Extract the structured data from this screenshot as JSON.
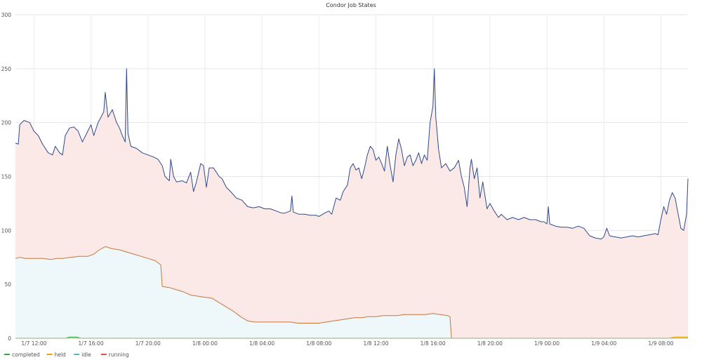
{
  "chart_data": {
    "type": "area",
    "title": "Condor Job States",
    "xlabel": "",
    "ylabel": "",
    "ylim": [
      0,
      300
    ],
    "grid": true,
    "legend_position": "bottom-left",
    "y_ticks": [
      "0",
      "50",
      "100",
      "150",
      "200",
      "250",
      "300"
    ],
    "x_tick_labels": [
      "1/7 12:00",
      "1/7 16:00",
      "1/7 20:00",
      "1/8 00:00",
      "1/8 04:00",
      "1/8 08:00",
      "1/8 12:00",
      "1/8 16:00",
      "1/8 20:00",
      "1/9 00:00",
      "1/9 04:00",
      "1/9 08:00"
    ],
    "x_hours": [
      12,
      16,
      20,
      24,
      28,
      32,
      36,
      40,
      44,
      48,
      52,
      56
    ],
    "x_range_hours": [
      10.7,
      57.9
    ],
    "x_unit": "hours since 1/7 00:00",
    "series": [
      {
        "name": "completed",
        "color": "#37a843",
        "fill": "none",
        "points": [
          [
            10.7,
            0
          ],
          [
            14.2,
            0
          ],
          [
            14.5,
            1
          ],
          [
            15.0,
            1
          ],
          [
            15.3,
            0
          ],
          [
            57.9,
            0
          ]
        ]
      },
      {
        "name": "held",
        "color": "#f2a100",
        "fill": "none",
        "points": [
          [
            10.7,
            0
          ],
          [
            56.5,
            0
          ],
          [
            57.0,
            1
          ],
          [
            57.9,
            1
          ]
        ]
      },
      {
        "name": "idle",
        "color": "#56b4d3",
        "fill": "#eef7fa",
        "points": [
          [
            10.7,
            74
          ],
          [
            11.0,
            75
          ],
          [
            11.4,
            74
          ],
          [
            12.0,
            74
          ],
          [
            12.6,
            74
          ],
          [
            13.2,
            73
          ],
          [
            13.6,
            74
          ],
          [
            14.0,
            74
          ],
          [
            14.6,
            75
          ],
          [
            15.2,
            76
          ],
          [
            15.8,
            76
          ],
          [
            16.2,
            78
          ],
          [
            16.6,
            82
          ],
          [
            17.0,
            85
          ],
          [
            17.5,
            83
          ],
          [
            18.0,
            82
          ],
          [
            18.5,
            80
          ],
          [
            19.0,
            78
          ],
          [
            19.5,
            76
          ],
          [
            20.0,
            74
          ],
          [
            20.5,
            72
          ],
          [
            20.9,
            68
          ],
          [
            21.0,
            48
          ],
          [
            21.5,
            47
          ],
          [
            22.0,
            45
          ],
          [
            22.5,
            43
          ],
          [
            23.0,
            40
          ],
          [
            23.5,
            39
          ],
          [
            24.0,
            38
          ],
          [
            24.5,
            37
          ],
          [
            25.0,
            33
          ],
          [
            25.5,
            29
          ],
          [
            26.0,
            25
          ],
          [
            26.5,
            20
          ],
          [
            27.0,
            16
          ],
          [
            27.5,
            15
          ],
          [
            28.0,
            15
          ],
          [
            28.5,
            15
          ],
          [
            29.0,
            15
          ],
          [
            29.5,
            15
          ],
          [
            30.0,
            15
          ],
          [
            30.5,
            14
          ],
          [
            31.0,
            14
          ],
          [
            31.5,
            14
          ],
          [
            32.0,
            14
          ],
          [
            32.5,
            15
          ],
          [
            33.0,
            16
          ],
          [
            33.5,
            17
          ],
          [
            34.0,
            18
          ],
          [
            34.5,
            19
          ],
          [
            35.0,
            19
          ],
          [
            35.5,
            20
          ],
          [
            36.0,
            20
          ],
          [
            36.5,
            21
          ],
          [
            37.0,
            21
          ],
          [
            37.5,
            21
          ],
          [
            38.0,
            22
          ],
          [
            38.5,
            22
          ],
          [
            39.0,
            22
          ],
          [
            39.5,
            22
          ],
          [
            40.0,
            23
          ],
          [
            40.5,
            22
          ],
          [
            41.0,
            21
          ],
          [
            41.2,
            20
          ],
          [
            41.3,
            0
          ],
          [
            57.9,
            0
          ]
        ]
      },
      {
        "name": "running",
        "color": "#e24d42",
        "fill": "#fbe9e7",
        "points": [
          [
            10.7,
            181
          ],
          [
            10.9,
            180
          ],
          [
            11.0,
            198
          ],
          [
            11.3,
            202
          ],
          [
            11.7,
            200
          ],
          [
            12.0,
            192
          ],
          [
            12.3,
            188
          ],
          [
            12.6,
            180
          ],
          [
            13.0,
            172
          ],
          [
            13.3,
            170
          ],
          [
            13.5,
            178
          ],
          [
            13.8,
            172
          ],
          [
            14.0,
            170
          ],
          [
            14.2,
            188
          ],
          [
            14.5,
            195
          ],
          [
            14.8,
            196
          ],
          [
            15.1,
            192
          ],
          [
            15.4,
            182
          ],
          [
            15.7,
            190
          ],
          [
            16.0,
            198
          ],
          [
            16.2,
            188
          ],
          [
            16.5,
            200
          ],
          [
            16.7,
            205
          ],
          [
            16.9,
            210
          ],
          [
            17.0,
            228
          ],
          [
            17.2,
            205
          ],
          [
            17.5,
            212
          ],
          [
            17.8,
            200
          ],
          [
            18.0,
            195
          ],
          [
            18.2,
            188
          ],
          [
            18.4,
            182
          ],
          [
            18.5,
            250
          ],
          [
            18.6,
            190
          ],
          [
            18.8,
            178
          ],
          [
            19.2,
            176
          ],
          [
            19.6,
            172
          ],
          [
            20.0,
            170
          ],
          [
            20.4,
            168
          ],
          [
            20.7,
            166
          ],
          [
            21.0,
            160
          ],
          [
            21.2,
            150
          ],
          [
            21.5,
            146
          ],
          [
            21.6,
            166
          ],
          [
            21.8,
            150
          ],
          [
            22.0,
            145
          ],
          [
            22.4,
            146
          ],
          [
            22.7,
            144
          ],
          [
            23.0,
            154
          ],
          [
            23.2,
            136
          ],
          [
            23.4,
            145
          ],
          [
            23.7,
            162
          ],
          [
            23.9,
            160
          ],
          [
            24.1,
            140
          ],
          [
            24.3,
            158
          ],
          [
            24.6,
            158
          ],
          [
            25.0,
            150
          ],
          [
            25.2,
            148
          ],
          [
            25.5,
            140
          ],
          [
            25.8,
            136
          ],
          [
            26.2,
            130
          ],
          [
            26.6,
            128
          ],
          [
            27.0,
            122
          ],
          [
            27.4,
            121
          ],
          [
            27.8,
            122
          ],
          [
            28.2,
            120
          ],
          [
            28.6,
            120
          ],
          [
            29.0,
            118
          ],
          [
            29.4,
            116
          ],
          [
            29.6,
            116
          ],
          [
            30.0,
            118
          ],
          [
            30.1,
            132
          ],
          [
            30.2,
            117
          ],
          [
            30.6,
            115
          ],
          [
            31.0,
            115
          ],
          [
            31.4,
            114
          ],
          [
            31.8,
            114
          ],
          [
            32.0,
            113
          ],
          [
            32.4,
            116
          ],
          [
            32.7,
            118
          ],
          [
            32.9,
            115
          ],
          [
            33.2,
            130
          ],
          [
            33.5,
            128
          ],
          [
            33.7,
            136
          ],
          [
            34.0,
            142
          ],
          [
            34.2,
            158
          ],
          [
            34.4,
            162
          ],
          [
            34.6,
            156
          ],
          [
            34.8,
            158
          ],
          [
            35.0,
            148
          ],
          [
            35.2,
            158
          ],
          [
            35.4,
            170
          ],
          [
            35.6,
            178
          ],
          [
            35.8,
            175
          ],
          [
            36.0,
            165
          ],
          [
            36.2,
            168
          ],
          [
            36.4,
            162
          ],
          [
            36.6,
            155
          ],
          [
            36.8,
            178
          ],
          [
            37.0,
            160
          ],
          [
            37.2,
            145
          ],
          [
            37.4,
            170
          ],
          [
            37.6,
            185
          ],
          [
            37.8,
            175
          ],
          [
            38.0,
            160
          ],
          [
            38.2,
            168
          ],
          [
            38.4,
            170
          ],
          [
            38.6,
            160
          ],
          [
            38.8,
            165
          ],
          [
            39.0,
            172
          ],
          [
            39.2,
            162
          ],
          [
            39.4,
            170
          ],
          [
            39.6,
            165
          ],
          [
            39.8,
            200
          ],
          [
            40.0,
            215
          ],
          [
            40.1,
            250
          ],
          [
            40.2,
            205
          ],
          [
            40.4,
            175
          ],
          [
            40.6,
            158
          ],
          [
            40.9,
            162
          ],
          [
            41.2,
            155
          ],
          [
            41.5,
            158
          ],
          [
            41.8,
            165
          ],
          [
            42.0,
            150
          ],
          [
            42.2,
            140
          ],
          [
            42.4,
            122
          ],
          [
            42.6,
            158
          ],
          [
            42.7,
            166
          ],
          [
            42.9,
            148
          ],
          [
            43.1,
            158
          ],
          [
            43.3,
            130
          ],
          [
            43.5,
            145
          ],
          [
            43.8,
            120
          ],
          [
            44.0,
            125
          ],
          [
            44.3,
            118
          ],
          [
            44.6,
            112
          ],
          [
            44.8,
            115
          ],
          [
            45.2,
            110
          ],
          [
            45.6,
            112
          ],
          [
            46.0,
            110
          ],
          [
            46.4,
            112
          ],
          [
            46.8,
            110
          ],
          [
            47.2,
            110
          ],
          [
            47.6,
            108
          ],
          [
            47.8,
            108
          ],
          [
            48.0,
            106
          ],
          [
            48.1,
            122
          ],
          [
            48.2,
            106
          ],
          [
            48.6,
            104
          ],
          [
            49.0,
            103
          ],
          [
            49.4,
            103
          ],
          [
            49.8,
            102
          ],
          [
            50.2,
            104
          ],
          [
            50.6,
            102
          ],
          [
            51.0,
            95
          ],
          [
            51.4,
            93
          ],
          [
            51.8,
            92
          ],
          [
            52.0,
            94
          ],
          [
            52.2,
            102
          ],
          [
            52.4,
            95
          ],
          [
            52.8,
            94
          ],
          [
            53.2,
            93
          ],
          [
            53.6,
            94
          ],
          [
            54.0,
            95
          ],
          [
            54.4,
            94
          ],
          [
            54.8,
            95
          ],
          [
            55.2,
            96
          ],
          [
            55.6,
            97
          ],
          [
            55.8,
            96
          ],
          [
            56.0,
            110
          ],
          [
            56.2,
            122
          ],
          [
            56.4,
            115
          ],
          [
            56.6,
            128
          ],
          [
            56.8,
            135
          ],
          [
            57.0,
            130
          ],
          [
            57.2,
            116
          ],
          [
            57.4,
            102
          ],
          [
            57.6,
            100
          ],
          [
            57.8,
            115
          ],
          [
            57.9,
            148
          ]
        ]
      }
    ]
  },
  "legend": {
    "items": [
      {
        "label": "completed",
        "color": "#37a843"
      },
      {
        "label": "held",
        "color": "#f2a100"
      },
      {
        "label": "idle",
        "color": "#56b4d3"
      },
      {
        "label": "running",
        "color": "#e24d42"
      }
    ]
  }
}
